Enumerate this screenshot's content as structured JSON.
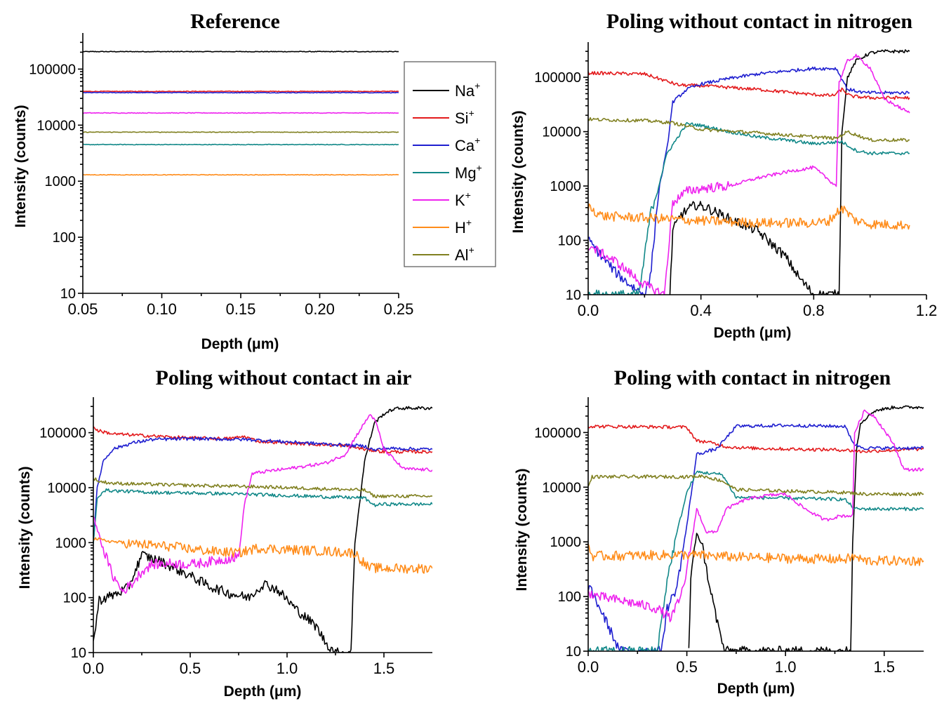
{
  "legend": {
    "entries": [
      {
        "base": "Na",
        "sup": "+",
        "color": "#000000"
      },
      {
        "base": "Si",
        "sup": "+",
        "color": "#e31a1c"
      },
      {
        "base": "Ca",
        "sup": "+",
        "color": "#1f1fd0"
      },
      {
        "base": "Mg",
        "sup": "+",
        "color": "#118888"
      },
      {
        "base": "K",
        "sup": "+",
        "color": "#ee22ee"
      },
      {
        "base": "H",
        "sup": "+",
        "color": "#ff8c1a"
      },
      {
        "base": "Al",
        "sup": "+",
        "color": "#808020"
      }
    ]
  },
  "chart_data": [
    {
      "type": "line",
      "title": "Reference",
      "xlabel": "Depth (μm)",
      "ylabel": "Intensity (counts)",
      "xlim": [
        0.05,
        0.25
      ],
      "ylim": [
        10,
        350000
      ],
      "yscale": "log",
      "xticks": [
        "0.05",
        "0.10",
        "0.15",
        "0.20",
        "0.25"
      ],
      "xtick_values": [
        0.05,
        0.1,
        0.15,
        0.2,
        0.25
      ],
      "yticks": [
        "10",
        "100",
        "1000",
        "10000",
        "100000"
      ],
      "ytick_values": [
        10,
        100,
        1000,
        10000,
        100000
      ],
      "series": [
        {
          "name": "Na+",
          "x": [
            0.05,
            0.25
          ],
          "y": [
            205000,
            205000
          ]
        },
        {
          "name": "Si+",
          "x": [
            0.05,
            0.25
          ],
          "y": [
            40000,
            40000
          ]
        },
        {
          "name": "Ca+",
          "x": [
            0.05,
            0.25
          ],
          "y": [
            38000,
            38000
          ]
        },
        {
          "name": "Mg+",
          "x": [
            0.05,
            0.25
          ],
          "y": [
            4500,
            4500
          ]
        },
        {
          "name": "K+",
          "x": [
            0.05,
            0.25
          ],
          "y": [
            16500,
            16500
          ]
        },
        {
          "name": "H+",
          "x": [
            0.05,
            0.25
          ],
          "y": [
            1300,
            1300
          ]
        },
        {
          "name": "Al+",
          "x": [
            0.05,
            0.25
          ],
          "y": [
            7500,
            7500
          ]
        }
      ]
    },
    {
      "type": "line",
      "title": "Poling without contact in nitrogen",
      "xlabel": "Depth (μm)",
      "ylabel": "Intensity (counts)",
      "xlim": [
        0,
        1.2
      ],
      "ylim": [
        10,
        350000
      ],
      "yscale": "log",
      "xticks": [
        "0.0",
        "0.4",
        "0.8",
        "1.2"
      ],
      "xtick_values": [
        0,
        0.4,
        0.8,
        1.2
      ],
      "yticks": [
        "10",
        "100",
        "1000",
        "10000",
        "100000"
      ],
      "ytick_values": [
        10,
        100,
        1000,
        10000,
        100000
      ],
      "series": [
        {
          "name": "Na+",
          "x": [
            0.29,
            0.3,
            0.33,
            0.38,
            0.42,
            0.5,
            0.6,
            0.7,
            0.75,
            0.8,
            0.89,
            0.9,
            0.92,
            0.95,
            1.0,
            1.05,
            1.14
          ],
          "y": [
            10,
            150,
            300,
            450,
            400,
            250,
            150,
            50,
            20,
            10,
            10,
            10000,
            100000,
            200000,
            280000,
            300000,
            300000
          ]
        },
        {
          "name": "Si+",
          "x": [
            0.0,
            0.2,
            0.32,
            0.4,
            0.6,
            0.8,
            0.87,
            0.9,
            0.93,
            1.0,
            1.14
          ],
          "y": [
            120000,
            115000,
            72000,
            70000,
            60000,
            48000,
            46000,
            60000,
            45000,
            42000,
            42000
          ]
        },
        {
          "name": "Ca+",
          "x": [
            0.0,
            0.05,
            0.1,
            0.15,
            0.2,
            0.22,
            0.25,
            0.28,
            0.3,
            0.35,
            0.4,
            0.5,
            0.6,
            0.7,
            0.8,
            0.88,
            0.92,
            0.98,
            1.14
          ],
          "y": [
            100,
            50,
            25,
            15,
            10,
            20,
            800,
            5000,
            35000,
            60000,
            75000,
            95000,
            115000,
            130000,
            145000,
            145000,
            60000,
            52000,
            52000
          ]
        },
        {
          "name": "Mg+",
          "x": [
            0.0,
            0.18,
            0.2,
            0.22,
            0.25,
            0.28,
            0.35,
            0.4,
            0.5,
            0.6,
            0.7,
            0.8,
            0.9,
            0.95,
            1.0,
            1.14
          ],
          "y": [
            10,
            10,
            50,
            300,
            1000,
            4000,
            14000,
            13000,
            10000,
            8000,
            7000,
            6000,
            6500,
            4500,
            4000,
            4000
          ]
        },
        {
          "name": "K+",
          "x": [
            0.0,
            0.1,
            0.2,
            0.27,
            0.3,
            0.35,
            0.4,
            0.5,
            0.6,
            0.7,
            0.8,
            0.88,
            0.89,
            0.92,
            0.95,
            1.0,
            1.05,
            1.14
          ],
          "y": [
            80,
            40,
            15,
            10,
            500,
            800,
            900,
            1000,
            1400,
            1800,
            2200,
            1000,
            80000,
            200000,
            250000,
            150000,
            40000,
            22000
          ]
        },
        {
          "name": "H+",
          "x": [
            0.0,
            0.05,
            0.2,
            0.4,
            0.6,
            0.8,
            0.85,
            0.9,
            0.95,
            1.0,
            1.14
          ],
          "y": [
            420,
            280,
            260,
            230,
            210,
            210,
            220,
            400,
            230,
            200,
            190
          ]
        },
        {
          "name": "Al+",
          "x": [
            0.0,
            0.05,
            0.2,
            0.3,
            0.4,
            0.6,
            0.8,
            0.88,
            0.92,
            1.0,
            1.14
          ],
          "y": [
            17000,
            16500,
            16000,
            14500,
            11000,
            9500,
            8000,
            7500,
            10000,
            7000,
            7000
          ]
        }
      ]
    },
    {
      "type": "line",
      "title": "Poling without contact in air",
      "xlabel": "Depth (μm)",
      "ylabel": "Intensity (counts)",
      "xlim": [
        0,
        1.75
      ],
      "ylim": [
        10,
        350000
      ],
      "yscale": "log",
      "xticks": [
        "0.0",
        "0.5",
        "1.0",
        "1.5"
      ],
      "xtick_values": [
        0,
        0.5,
        1.0,
        1.5
      ],
      "yticks": [
        "10",
        "100",
        "1000",
        "10000",
        "100000"
      ],
      "ytick_values": [
        10,
        100,
        1000,
        10000,
        100000
      ],
      "series": [
        {
          "name": "Na+",
          "x": [
            0.0,
            0.03,
            0.1,
            0.18,
            0.25,
            0.35,
            0.5,
            0.6,
            0.7,
            0.8,
            0.88,
            0.95,
            1.05,
            1.15,
            1.2,
            1.25,
            1.33,
            1.35,
            1.4,
            1.45,
            1.5,
            1.55,
            1.6,
            1.75
          ],
          "y": [
            15,
            90,
            110,
            150,
            600,
            450,
            250,
            160,
            120,
            100,
            180,
            140,
            60,
            30,
            15,
            10,
            10,
            1000,
            30000,
            150000,
            220000,
            270000,
            280000,
            280000
          ]
        },
        {
          "name": "Si+",
          "x": [
            0.0,
            0.02,
            0.1,
            0.5,
            0.7,
            0.78,
            0.85,
            1.0,
            1.3,
            1.4,
            1.5,
            1.75
          ],
          "y": [
            130000,
            110000,
            95000,
            80000,
            78000,
            85000,
            70000,
            65000,
            58000,
            50000,
            45000,
            45000
          ]
        },
        {
          "name": "Ca+",
          "x": [
            0.0,
            0.02,
            0.05,
            0.1,
            0.2,
            0.3,
            0.5,
            0.8,
            1.0,
            1.2,
            1.4,
            1.45,
            1.5,
            1.75
          ],
          "y": [
            1000,
            10000,
            30000,
            50000,
            65000,
            75000,
            78000,
            75000,
            68000,
            62000,
            57000,
            48000,
            52000,
            50000
          ]
        },
        {
          "name": "Mg+",
          "x": [
            0.0,
            0.02,
            0.05,
            0.1,
            0.3,
            0.5,
            0.8,
            1.0,
            1.2,
            1.4,
            1.45,
            1.5,
            1.75
          ],
          "y": [
            1000,
            6000,
            9000,
            8800,
            8200,
            8000,
            7600,
            7200,
            6800,
            6500,
            4800,
            5000,
            5000
          ]
        },
        {
          "name": "K+",
          "x": [
            0.0,
            0.05,
            0.1,
            0.15,
            0.2,
            0.25,
            0.3,
            0.4,
            0.5,
            0.6,
            0.75,
            0.78,
            0.82,
            0.9,
            1.0,
            1.2,
            1.3,
            1.35,
            1.4,
            1.43,
            1.46,
            1.5,
            1.6,
            1.75
          ],
          "y": [
            3000,
            800,
            250,
            130,
            180,
            300,
            400,
            420,
            400,
            450,
            550,
            5000,
            18000,
            20000,
            22000,
            28000,
            40000,
            80000,
            150000,
            220000,
            150000,
            50000,
            22000,
            21000
          ]
        },
        {
          "name": "H+",
          "x": [
            0.0,
            0.05,
            0.2,
            0.4,
            0.6,
            0.75,
            0.85,
            1.0,
            1.2,
            1.35,
            1.42,
            1.5,
            1.75
          ],
          "y": [
            1200,
            1100,
            950,
            850,
            700,
            650,
            800,
            750,
            700,
            650,
            350,
            340,
            340
          ]
        },
        {
          "name": "Al+",
          "x": [
            0.0,
            0.03,
            0.1,
            0.3,
            0.5,
            0.8,
            1.0,
            1.2,
            1.4,
            1.45,
            1.5,
            1.75
          ],
          "y": [
            15000,
            13000,
            12000,
            11500,
            11000,
            10500,
            10000,
            9500,
            9000,
            7000,
            7000,
            7000
          ]
        }
      ]
    },
    {
      "type": "line",
      "title": "Poling with contact in nitrogen",
      "xlabel": "Depth (μm)",
      "ylabel": "Intensity (counts)",
      "xlim": [
        0,
        1.7
      ],
      "ylim": [
        10,
        350000
      ],
      "yscale": "log",
      "xticks": [
        "0.0",
        "0.5",
        "1.0",
        "1.5"
      ],
      "xtick_values": [
        0,
        0.5,
        1.0,
        1.5
      ],
      "yticks": [
        "10",
        "100",
        "1000",
        "10000",
        "100000"
      ],
      "ytick_values": [
        10,
        100,
        1000,
        10000,
        100000
      ],
      "series": [
        {
          "name": "Na+",
          "x": [
            0.51,
            0.52,
            0.55,
            0.58,
            0.6,
            0.65,
            0.69,
            1.33,
            1.34,
            1.36,
            1.38,
            1.45,
            1.55,
            1.7
          ],
          "y": [
            10,
            200,
            1500,
            800,
            300,
            40,
            10,
            10,
            1000,
            50000,
            150000,
            250000,
            290000,
            290000
          ]
        },
        {
          "name": "Si+",
          "x": [
            0.0,
            0.5,
            0.55,
            0.6,
            0.7,
            0.8,
            1.0,
            1.3,
            1.38,
            1.7
          ],
          "y": [
            130000,
            125000,
            70000,
            68000,
            55000,
            52000,
            50000,
            48000,
            45000,
            50000
          ]
        },
        {
          "name": "Ca+",
          "x": [
            0.0,
            0.03,
            0.1,
            0.16,
            0.37,
            0.4,
            0.45,
            0.5,
            0.55,
            0.65,
            0.7,
            0.75,
            1.0,
            1.3,
            1.35,
            1.4,
            1.7
          ],
          "y": [
            150,
            100,
            30,
            10,
            10,
            60,
            150,
            2000,
            40000,
            50000,
            80000,
            130000,
            135000,
            130000,
            60000,
            52000,
            52000
          ]
        },
        {
          "name": "Mg+",
          "x": [
            0.0,
            0.35,
            0.4,
            0.45,
            0.5,
            0.55,
            0.68,
            0.75,
            1.0,
            1.3,
            1.35,
            1.4,
            1.7
          ],
          "y": [
            10,
            10,
            200,
            1500,
            8000,
            19000,
            17000,
            6500,
            6300,
            6000,
            4000,
            4000,
            4000
          ]
        },
        {
          "name": "K+",
          "x": [
            0.0,
            0.05,
            0.2,
            0.35,
            0.42,
            0.47,
            0.5,
            0.55,
            0.6,
            0.65,
            0.7,
            0.8,
            0.9,
            1.0,
            1.1,
            1.2,
            1.28,
            1.34,
            1.35,
            1.4,
            1.45,
            1.55,
            1.6,
            1.7
          ],
          "y": [
            120,
            100,
            80,
            60,
            40,
            100,
            300,
            4000,
            1500,
            1500,
            4000,
            6000,
            7000,
            7500,
            4000,
            2500,
            3000,
            3000,
            100000,
            250000,
            200000,
            60000,
            21000,
            21000
          ]
        },
        {
          "name": "H+",
          "x": [
            0.0,
            0.02,
            0.2,
            0.5,
            0.8,
            1.0,
            1.3,
            1.35,
            1.4,
            1.7
          ],
          "y": [
            900,
            550,
            560,
            580,
            520,
            500,
            480,
            530,
            450,
            450
          ]
        },
        {
          "name": "Al+",
          "x": [
            0.0,
            0.02,
            0.2,
            0.5,
            0.58,
            0.68,
            0.75,
            1.0,
            1.3,
            1.4,
            1.7
          ],
          "y": [
            10000,
            15500,
            15500,
            15500,
            16000,
            13000,
            9000,
            8500,
            8000,
            7500,
            7500
          ]
        }
      ]
    }
  ]
}
